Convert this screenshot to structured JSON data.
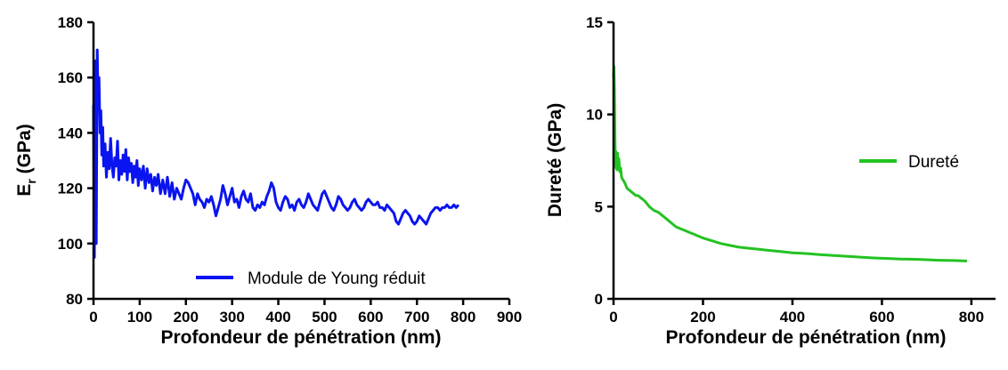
{
  "chart_data": [
    {
      "type": "line",
      "xlabel": "Profondeur de pénétration (nm)",
      "ylabel_main": "E",
      "ylabel_sub": "r",
      "ylabel_rest": " (GPa)",
      "xlim": [
        0,
        900
      ],
      "ylim": [
        80,
        180
      ],
      "xticks": [
        "0",
        "100",
        "200",
        "300",
        "400",
        "500",
        "600",
        "700",
        "800",
        "900"
      ],
      "yticks": [
        "80",
        "100",
        "120",
        "140",
        "160",
        "180"
      ],
      "xtick_values": [
        0,
        100,
        200,
        300,
        400,
        500,
        600,
        700,
        800,
        900
      ],
      "ytick_values": [
        80,
        100,
        120,
        140,
        160,
        180
      ],
      "legend_position": "bottom-right",
      "series": [
        {
          "name": "Module de Young réduit",
          "color": "#0a14f0",
          "x": [
            0,
            2,
            4,
            6,
            8,
            10,
            12,
            14,
            16,
            18,
            20,
            22,
            25,
            28,
            31,
            34,
            37,
            40,
            43,
            46,
            49,
            52,
            55,
            58,
            61,
            64,
            67,
            70,
            73,
            76,
            79,
            82,
            85,
            88,
            91,
            94,
            97,
            100,
            104,
            108,
            112,
            116,
            120,
            124,
            128,
            132,
            136,
            140,
            145,
            150,
            155,
            160,
            165,
            170,
            175,
            180,
            185,
            190,
            195,
            200,
            205,
            210,
            215,
            220,
            225,
            230,
            235,
            240,
            245,
            250,
            255,
            260,
            265,
            270,
            275,
            280,
            285,
            290,
            295,
            300,
            305,
            310,
            315,
            320,
            325,
            330,
            335,
            340,
            345,
            350,
            355,
            360,
            365,
            370,
            375,
            380,
            385,
            390,
            395,
            400,
            405,
            410,
            415,
            420,
            425,
            430,
            435,
            440,
            445,
            450,
            455,
            460,
            465,
            470,
            475,
            480,
            485,
            490,
            495,
            500,
            505,
            510,
            515,
            520,
            525,
            530,
            535,
            540,
            545,
            550,
            555,
            560,
            565,
            570,
            575,
            580,
            585,
            590,
            595,
            600,
            605,
            610,
            615,
            620,
            625,
            630,
            635,
            640,
            645,
            650,
            655,
            660,
            665,
            670,
            675,
            680,
            685,
            690,
            695,
            700,
            705,
            710,
            715,
            720,
            725,
            730,
            735,
            740,
            745,
            750,
            755,
            760,
            765,
            770,
            775,
            780,
            785,
            790
          ],
          "values": [
            150,
            95,
            166,
            100,
            170,
            150,
            160,
            140,
            148,
            132,
            142,
            128,
            136,
            124,
            133,
            127,
            138,
            128,
            124,
            131,
            128,
            137,
            123,
            130,
            125,
            132,
            126,
            134,
            123,
            131,
            126,
            129,
            122,
            128,
            124,
            130,
            121,
            127,
            123,
            128,
            120,
            127,
            122,
            125,
            119,
            124,
            121,
            125,
            118,
            123,
            118,
            124,
            117,
            122,
            116,
            120,
            118,
            116,
            120,
            123,
            122,
            120,
            118,
            114,
            118,
            116,
            115,
            113,
            116,
            115,
            117,
            114,
            110,
            113,
            116,
            121,
            118,
            114,
            117,
            120,
            115,
            116,
            113,
            117,
            119,
            116,
            115,
            118,
            113,
            112,
            114,
            113,
            115,
            114,
            117,
            119,
            122,
            120,
            115,
            113,
            112,
            115,
            117,
            116,
            113,
            114,
            112,
            115,
            116,
            114,
            113,
            115,
            118,
            116,
            114,
            113,
            112,
            115,
            118,
            119,
            117,
            115,
            113,
            112,
            114,
            117,
            116,
            114,
            113,
            112,
            113,
            115,
            116,
            114,
            113,
            112,
            113,
            115,
            116,
            115,
            114,
            114,
            115,
            113,
            113,
            112,
            114,
            113,
            112,
            111,
            108,
            107,
            109,
            111,
            112,
            111,
            110,
            108,
            107,
            108,
            110,
            109,
            108,
            107,
            109,
            111,
            112,
            113,
            113,
            112,
            113,
            113,
            114,
            113,
            113,
            114,
            113,
            114
          ]
        }
      ]
    },
    {
      "type": "line",
      "xlabel": "Profondeur de pénétration (nm)",
      "ylabel": "Dureté (GPa)",
      "xlim": [
        0,
        850
      ],
      "ylim": [
        0,
        15
      ],
      "xticks": [
        "0",
        "200",
        "400",
        "600",
        "800"
      ],
      "yticks": [
        "0",
        "5",
        "10",
        "15"
      ],
      "xtick_values": [
        0,
        200,
        400,
        600,
        800
      ],
      "ytick_values": [
        0,
        5,
        10,
        15
      ],
      "legend_position": "upper-right",
      "series": [
        {
          "name": "Dureté",
          "color": "#22c322",
          "x": [
            0,
            1,
            2,
            3,
            4,
            5,
            6,
            7,
            8,
            9,
            10,
            12,
            14,
            16,
            18,
            20,
            25,
            30,
            35,
            40,
            45,
            50,
            55,
            60,
            65,
            70,
            80,
            90,
            100,
            110,
            120,
            130,
            140,
            150,
            160,
            170,
            180,
            190,
            200,
            220,
            240,
            260,
            280,
            300,
            320,
            340,
            360,
            380,
            400,
            420,
            440,
            460,
            480,
            500,
            520,
            540,
            560,
            580,
            600,
            620,
            640,
            660,
            680,
            700,
            720,
            740,
            760,
            780,
            790
          ],
          "values": [
            12.0,
            12.6,
            11.4,
            9.2,
            7.2,
            8.0,
            7.1,
            7.6,
            7.0,
            7.9,
            7.2,
            7.6,
            6.9,
            7.1,
            6.6,
            6.5,
            6.3,
            6.0,
            5.9,
            5.8,
            5.7,
            5.6,
            5.6,
            5.5,
            5.4,
            5.3,
            5.0,
            4.8,
            4.7,
            4.5,
            4.3,
            4.1,
            3.9,
            3.8,
            3.7,
            3.6,
            3.5,
            3.4,
            3.3,
            3.15,
            3.0,
            2.9,
            2.8,
            2.75,
            2.7,
            2.65,
            2.6,
            2.55,
            2.5,
            2.47,
            2.44,
            2.4,
            2.37,
            2.34,
            2.31,
            2.28,
            2.25,
            2.22,
            2.2,
            2.18,
            2.16,
            2.15,
            2.14,
            2.12,
            2.1,
            2.09,
            2.08,
            2.06,
            2.05
          ]
        }
      ]
    }
  ]
}
